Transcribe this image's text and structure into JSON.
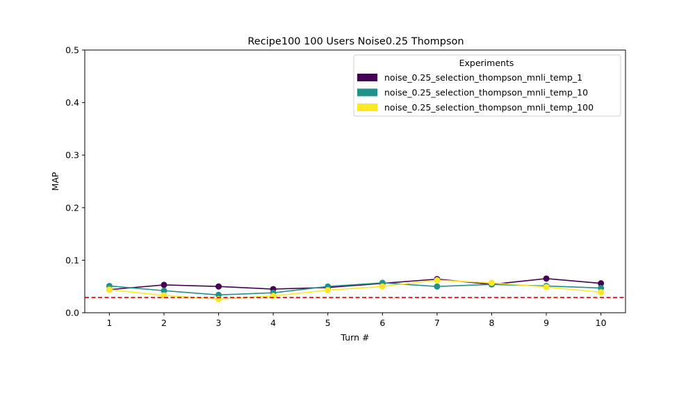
{
  "chart_data": {
    "type": "line",
    "title": "Recipe100 100 Users Noise0.25 Thompson",
    "xlabel": "Turn #",
    "ylabel": "MAP",
    "x": [
      1,
      2,
      3,
      4,
      5,
      6,
      7,
      8,
      9,
      10
    ],
    "xlim": [
      0.55,
      10.45
    ],
    "ylim": [
      0,
      0.5
    ],
    "yticks": [
      0.0,
      0.1,
      0.2,
      0.3,
      0.4,
      0.5
    ],
    "ytick_labels": [
      "0.0",
      "0.1",
      "0.2",
      "0.3",
      "0.4",
      "0.5"
    ],
    "xtick_labels": [
      "1",
      "2",
      "3",
      "4",
      "5",
      "6",
      "7",
      "8",
      "9",
      "10"
    ],
    "grid": false,
    "legend": {
      "title": "Experiments",
      "placement": "top-right"
    },
    "reference_line": {
      "y": 0.029,
      "color": "#e00000",
      "style": "dashed"
    },
    "series": [
      {
        "name": "noise_0.25_selection_thompson_mnli_temp_1",
        "color": "#440154",
        "values": [
          0.044,
          0.053,
          0.05,
          0.045,
          0.048,
          0.056,
          0.064,
          0.054,
          0.065,
          0.056
        ]
      },
      {
        "name": "noise_0.25_selection_thompson_mnli_temp_10",
        "color": "#21918c",
        "values": [
          0.051,
          0.042,
          0.034,
          0.038,
          0.05,
          0.057,
          0.05,
          0.054,
          0.051,
          0.047
        ]
      },
      {
        "name": "noise_0.25_selection_thompson_mnli_temp_100",
        "color": "#fde725",
        "values": [
          0.044,
          0.033,
          0.026,
          0.032,
          0.043,
          0.05,
          0.062,
          0.057,
          0.049,
          0.039
        ]
      }
    ]
  }
}
